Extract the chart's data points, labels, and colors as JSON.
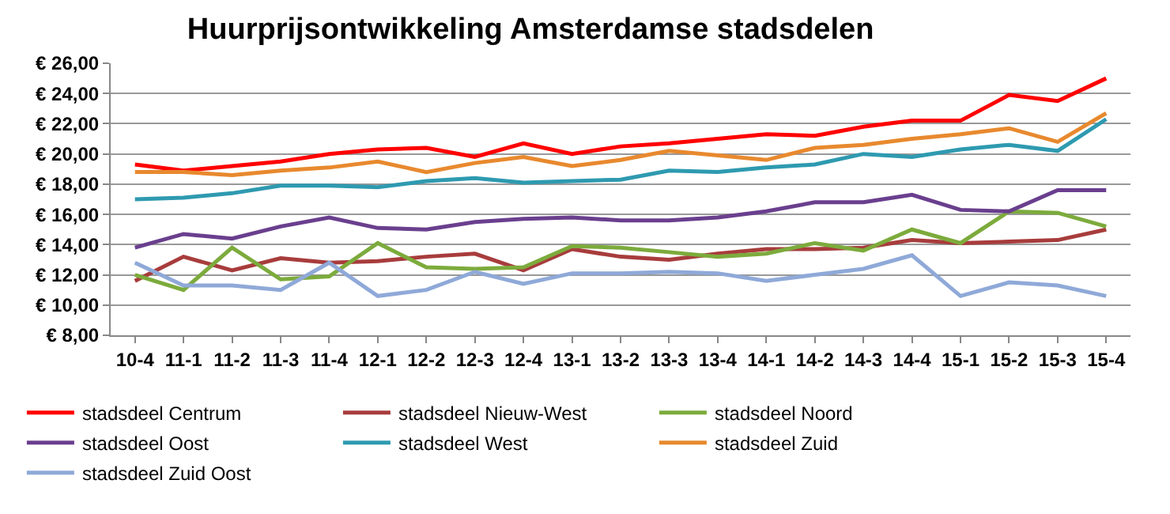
{
  "chart_data": {
    "type": "line",
    "title": "Huurprijsontwikkeling Amsterdamse stadsdelen",
    "categories": [
      "10-4",
      "11-1",
      "11-2",
      "11-3",
      "11-4",
      "12-1",
      "12-2",
      "12-3",
      "12-4",
      "13-1",
      "13-2",
      "13-3",
      "13-4",
      "14-1",
      "14-2",
      "14-3",
      "14-4",
      "15-1",
      "15-2",
      "15-3",
      "15-4"
    ],
    "series": [
      {
        "name": "stadsdeel Centrum",
        "color": "#ff0000",
        "values": [
          19.3,
          18.9,
          19.2,
          19.5,
          20.0,
          20.3,
          20.4,
          19.8,
          20.7,
          20.0,
          20.5,
          20.7,
          21.0,
          21.3,
          21.2,
          21.8,
          22.2,
          22.2,
          23.9,
          23.5,
          25.0
        ]
      },
      {
        "name": "stadsdeel Nieuw-West",
        "color": "#a83c3c",
        "values": [
          11.6,
          13.2,
          12.3,
          13.1,
          12.8,
          12.9,
          13.2,
          13.4,
          12.3,
          13.7,
          13.2,
          13.0,
          13.4,
          13.7,
          13.7,
          13.8,
          14.3,
          14.1,
          14.2,
          14.3,
          15.0
        ]
      },
      {
        "name": "stadsdeel Noord",
        "color": "#7cab3c",
        "values": [
          12.0,
          11.0,
          13.8,
          11.7,
          11.9,
          14.1,
          12.5,
          12.4,
          12.5,
          13.9,
          13.8,
          13.5,
          13.2,
          13.4,
          14.1,
          13.6,
          15.0,
          14.1,
          16.2,
          16.1,
          15.2
        ]
      },
      {
        "name": "stadsdeel Oost",
        "color": "#6a3f8e",
        "values": [
          13.8,
          14.7,
          14.4,
          15.2,
          15.8,
          15.1,
          15.0,
          15.5,
          15.7,
          15.8,
          15.6,
          15.6,
          15.8,
          16.2,
          16.8,
          16.8,
          17.3,
          16.3,
          16.2,
          17.6,
          17.6
        ]
      },
      {
        "name": "stadsdeel West",
        "color": "#2e9ab0",
        "values": [
          17.0,
          17.1,
          17.4,
          17.9,
          17.9,
          17.8,
          18.2,
          18.4,
          18.1,
          18.2,
          18.3,
          18.9,
          18.8,
          19.1,
          19.3,
          20.0,
          19.8,
          20.3,
          20.6,
          20.2,
          22.3
        ]
      },
      {
        "name": "stadsdeel Zuid",
        "color": "#e8892e",
        "values": [
          18.8,
          18.8,
          18.6,
          18.9,
          19.1,
          19.5,
          18.8,
          19.4,
          19.8,
          19.2,
          19.6,
          20.2,
          19.9,
          19.6,
          20.4,
          20.6,
          21.0,
          21.3,
          21.7,
          20.8,
          22.7
        ]
      },
      {
        "name": "stadsdeel Zuid Oost",
        "color": "#8fa9d8",
        "values": [
          12.8,
          11.3,
          11.3,
          11.0,
          12.8,
          10.6,
          11.0,
          12.2,
          11.4,
          12.1,
          12.1,
          12.2,
          12.1,
          11.6,
          12.0,
          12.4,
          13.3,
          10.6,
          11.5,
          11.3,
          10.6
        ]
      }
    ],
    "ylim": [
      8,
      26
    ],
    "yticks": [
      {
        "value": 8,
        "label": "€ 8,00"
      },
      {
        "value": 10,
        "label": "€ 10,00"
      },
      {
        "value": 12,
        "label": "€ 12,00"
      },
      {
        "value": 14,
        "label": "€ 14,00"
      },
      {
        "value": 16,
        "label": "€ 16,00"
      },
      {
        "value": 18,
        "label": "€ 18,00"
      },
      {
        "value": 20,
        "label": "€ 20,00"
      },
      {
        "value": 22,
        "label": "€ 22,00"
      },
      {
        "value": 24,
        "label": "€ 24,00"
      },
      {
        "value": 26,
        "label": "€ 26,00"
      }
    ],
    "grid": "y",
    "legend": "bottom",
    "marker": "none",
    "line_style": "solid"
  }
}
